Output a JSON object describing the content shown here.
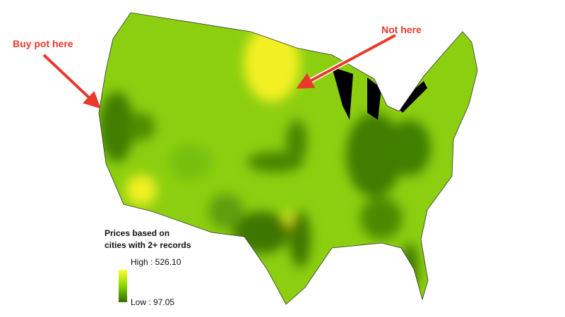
{
  "annotations": [
    {
      "text": "Buy pot here"
    },
    {
      "text": "Not here"
    }
  ],
  "legend": {
    "title_lines": [
      "Prices based on",
      "cities with 2+ records"
    ],
    "high": "High : 526.10",
    "low": "Low : 97.05"
  }
}
